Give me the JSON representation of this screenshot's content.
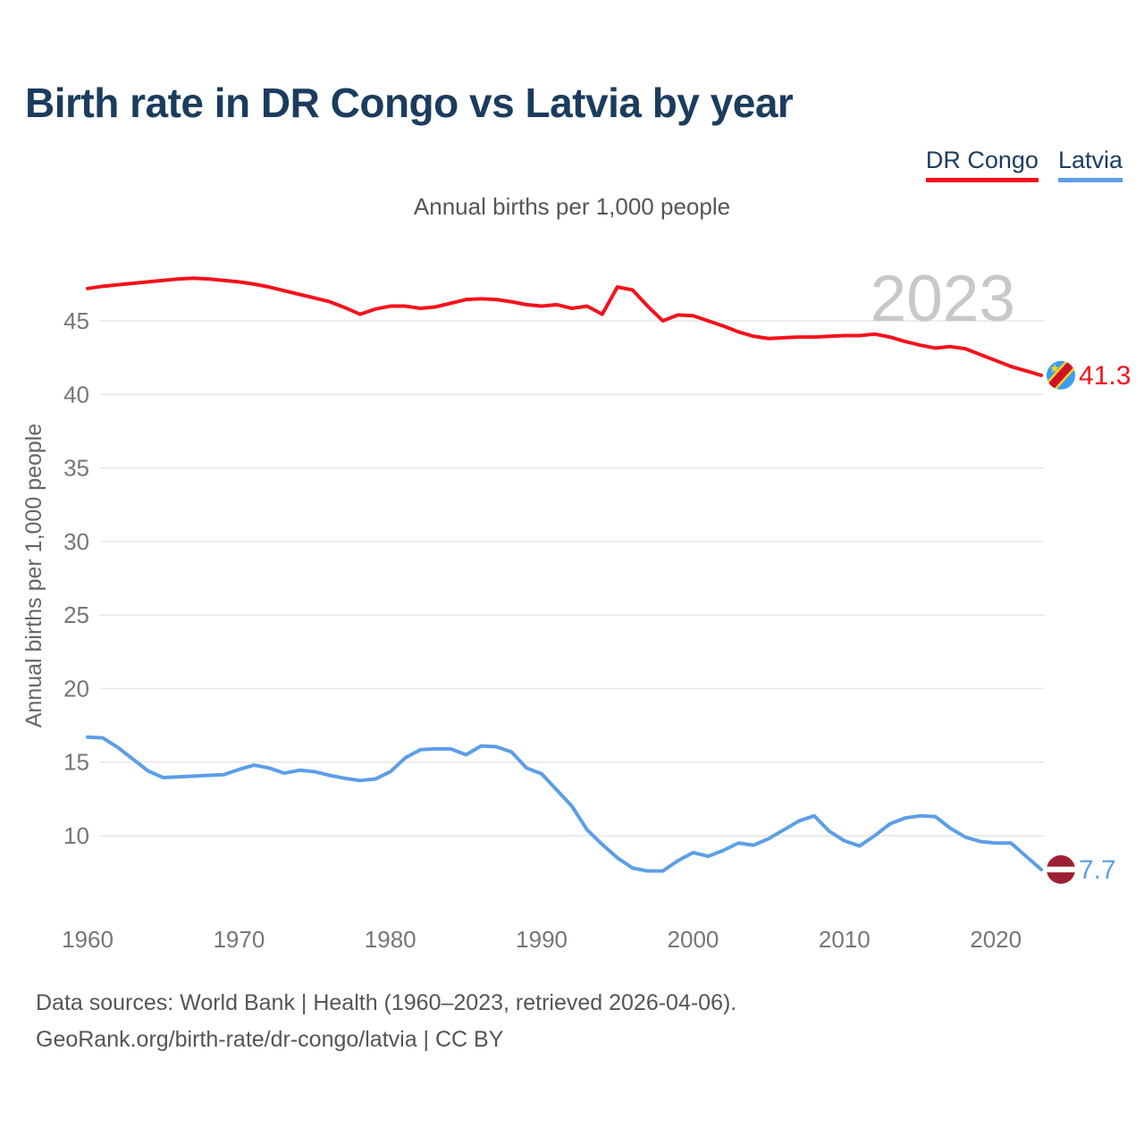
{
  "header": {
    "title": "Birth rate in DR Congo vs Latvia by year"
  },
  "legend": {
    "items": [
      {
        "label": "DR Congo",
        "color": "#f4121d"
      },
      {
        "label": "Latvia",
        "color": "#5c9ee7"
      }
    ]
  },
  "subtitle": "Annual births per 1,000 people",
  "watermark": "2023",
  "footer": {
    "line1": "Data sources: World Bank | Health (1960–2023, retrieved 2026-04-06).",
    "line2": "GeoRank.org/birth-rate/dr-congo/latvia | CC BY"
  },
  "chart_data": {
    "type": "line",
    "title": "Birth rate in DR Congo vs Latvia by year",
    "ylabel": "Annual births per 1,000 people",
    "xlim": [
      1960,
      2023
    ],
    "ylim": [
      7,
      48.5
    ],
    "grid": "horizontal-only",
    "legend_position": "top-right",
    "xticks": [
      1960,
      1970,
      1980,
      1990,
      2000,
      2010,
      2020
    ],
    "yticks": [
      10,
      15,
      20,
      25,
      30,
      35,
      40,
      45
    ],
    "x": [
      1960,
      1961,
      1962,
      1963,
      1964,
      1965,
      1966,
      1967,
      1968,
      1969,
      1970,
      1971,
      1972,
      1973,
      1974,
      1975,
      1976,
      1977,
      1978,
      1979,
      1980,
      1981,
      1982,
      1983,
      1984,
      1985,
      1986,
      1987,
      1988,
      1989,
      1990,
      1991,
      1992,
      1993,
      1994,
      1995,
      1996,
      1997,
      1998,
      1999,
      2000,
      2001,
      2002,
      2003,
      2004,
      2005,
      2006,
      2007,
      2008,
      2009,
      2010,
      2011,
      2012,
      2013,
      2014,
      2015,
      2016,
      2017,
      2018,
      2019,
      2020,
      2021,
      2022,
      2023
    ],
    "series": [
      {
        "name": "DR Congo",
        "color": "#f4121d",
        "end_label": "41.3",
        "flag": "dr-congo",
        "values": [
          47.2,
          47.35,
          47.45,
          47.55,
          47.65,
          47.75,
          47.85,
          47.9,
          47.85,
          47.75,
          47.65,
          47.5,
          47.3,
          47.05,
          46.8,
          46.55,
          46.3,
          45.9,
          45.45,
          45.8,
          46.0,
          46.0,
          45.85,
          45.95,
          46.2,
          46.45,
          46.5,
          46.45,
          46.3,
          46.1,
          46.0,
          46.1,
          45.85,
          46.0,
          45.45,
          47.3,
          47.1,
          46.0,
          45.0,
          45.4,
          45.35,
          45.0,
          44.65,
          44.25,
          43.95,
          43.8,
          43.85,
          43.9,
          43.9,
          43.95,
          44.0,
          44.0,
          44.1,
          43.9,
          43.6,
          43.35,
          43.15,
          43.25,
          43.1,
          42.7,
          42.3,
          41.9,
          41.6,
          41.3
        ]
      },
      {
        "name": "Latvia",
        "color": "#5c9ee7",
        "end_label": "7.7",
        "flag": "latvia",
        "values": [
          16.7,
          16.65,
          16.0,
          15.2,
          14.4,
          13.95,
          14.0,
          14.05,
          14.1,
          14.15,
          14.5,
          14.8,
          14.6,
          14.25,
          14.45,
          14.35,
          14.1,
          13.9,
          13.75,
          13.85,
          14.35,
          15.3,
          15.85,
          15.9,
          15.9,
          15.5,
          16.1,
          16.05,
          15.7,
          14.6,
          14.2,
          13.1,
          12.0,
          10.4,
          9.4,
          8.5,
          7.8,
          7.6,
          7.6,
          8.3,
          8.85,
          8.6,
          9.0,
          9.5,
          9.35,
          9.8,
          10.4,
          11.0,
          11.35,
          10.3,
          9.65,
          9.3,
          10.0,
          10.8,
          11.2,
          11.35,
          11.3,
          10.5,
          9.9,
          9.6,
          9.5,
          9.5,
          8.6,
          7.7
        ]
      }
    ],
    "flag_colors": {
      "dr_congo_blue": "#3c9cf5",
      "dr_congo_yellow": "#f7d618",
      "dr_congo_red": "#ce1126",
      "latvia_carmine": "#9c2033",
      "latvia_white": "#ffffff"
    },
    "text_colors": {
      "title": "#1b3c5e",
      "ticks": "#767676",
      "axis_title": "#666666",
      "watermark": "#c8c8c8",
      "gridline": "#e7e7e7"
    }
  }
}
